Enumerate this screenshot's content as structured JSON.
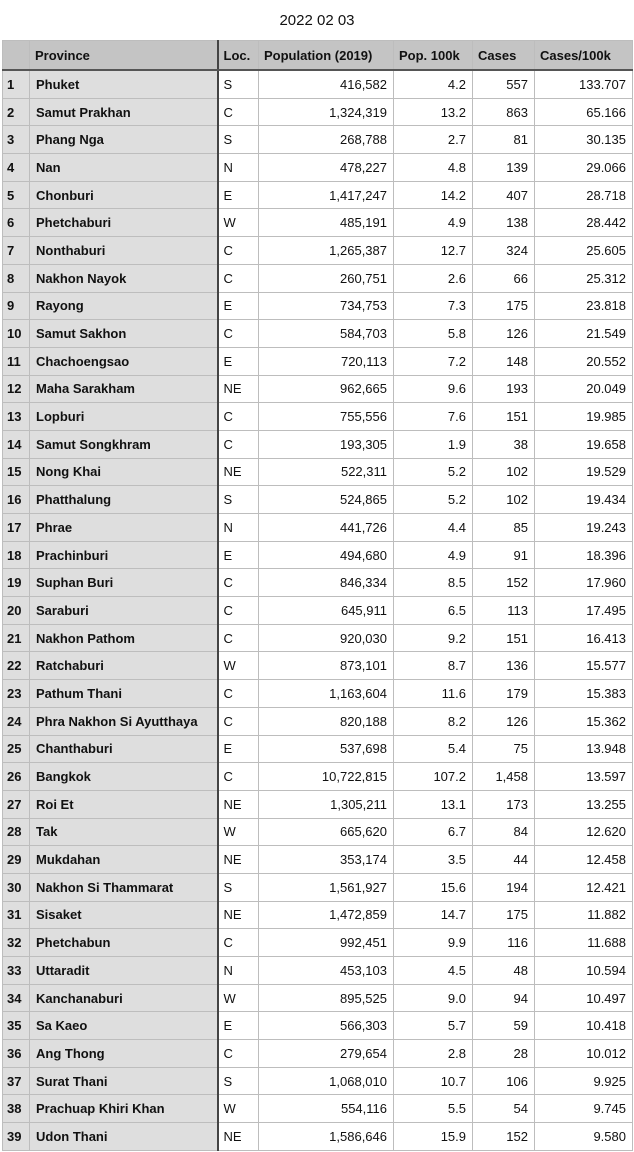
{
  "title": "2022 02 03",
  "columns": [
    "",
    "Province",
    "Loc.",
    "Population (2019)",
    "Pop. 100k",
    "Cases",
    "Cases/100k"
  ],
  "rows": [
    [
      "1",
      "Phuket",
      "S",
      "416,582",
      "4.2",
      "557",
      "133.707"
    ],
    [
      "2",
      "Samut Prakhan",
      "C",
      "1,324,319",
      "13.2",
      "863",
      "65.166"
    ],
    [
      "3",
      "Phang Nga",
      "S",
      "268,788",
      "2.7",
      "81",
      "30.135"
    ],
    [
      "4",
      "Nan",
      "N",
      "478,227",
      "4.8",
      "139",
      "29.066"
    ],
    [
      "5",
      "Chonburi",
      "E",
      "1,417,247",
      "14.2",
      "407",
      "28.718"
    ],
    [
      "6",
      "Phetchaburi",
      "W",
      "485,191",
      "4.9",
      "138",
      "28.442"
    ],
    [
      "7",
      "Nonthaburi",
      "C",
      "1,265,387",
      "12.7",
      "324",
      "25.605"
    ],
    [
      "8",
      "Nakhon Nayok",
      "C",
      "260,751",
      "2.6",
      "66",
      "25.312"
    ],
    [
      "9",
      "Rayong",
      "E",
      "734,753",
      "7.3",
      "175",
      "23.818"
    ],
    [
      "10",
      "Samut Sakhon",
      "C",
      "584,703",
      "5.8",
      "126",
      "21.549"
    ],
    [
      "11",
      "Chachoengsao",
      "E",
      "720,113",
      "7.2",
      "148",
      "20.552"
    ],
    [
      "12",
      "Maha Sarakham",
      "NE",
      "962,665",
      "9.6",
      "193",
      "20.049"
    ],
    [
      "13",
      "Lopburi",
      "C",
      "755,556",
      "7.6",
      "151",
      "19.985"
    ],
    [
      "14",
      "Samut Songkhram",
      "C",
      "193,305",
      "1.9",
      "38",
      "19.658"
    ],
    [
      "15",
      "Nong Khai",
      "NE",
      "522,311",
      "5.2",
      "102",
      "19.529"
    ],
    [
      "16",
      "Phatthalung",
      "S",
      "524,865",
      "5.2",
      "102",
      "19.434"
    ],
    [
      "17",
      "Phrae",
      "N",
      "441,726",
      "4.4",
      "85",
      "19.243"
    ],
    [
      "18",
      "Prachinburi",
      "E",
      "494,680",
      "4.9",
      "91",
      "18.396"
    ],
    [
      "19",
      "Suphan Buri",
      "C",
      "846,334",
      "8.5",
      "152",
      "17.960"
    ],
    [
      "20",
      "Saraburi",
      "C",
      "645,911",
      "6.5",
      "113",
      "17.495"
    ],
    [
      "21",
      "Nakhon Pathom",
      "C",
      "920,030",
      "9.2",
      "151",
      "16.413"
    ],
    [
      "22",
      "Ratchaburi",
      "W",
      "873,101",
      "8.7",
      "136",
      "15.577"
    ],
    [
      "23",
      "Pathum Thani",
      "C",
      "1,163,604",
      "11.6",
      "179",
      "15.383"
    ],
    [
      "24",
      "Phra Nakhon Si Ayutthaya",
      "C",
      "820,188",
      "8.2",
      "126",
      "15.362"
    ],
    [
      "25",
      "Chanthaburi",
      "E",
      "537,698",
      "5.4",
      "75",
      "13.948"
    ],
    [
      "26",
      "Bangkok",
      "C",
      "10,722,815",
      "107.2",
      "1,458",
      "13.597"
    ],
    [
      "27",
      "Roi Et",
      "NE",
      "1,305,211",
      "13.1",
      "173",
      "13.255"
    ],
    [
      "28",
      "Tak",
      "W",
      "665,620",
      "6.7",
      "84",
      "12.620"
    ],
    [
      "29",
      "Mukdahan",
      "NE",
      "353,174",
      "3.5",
      "44",
      "12.458"
    ],
    [
      "30",
      "Nakhon Si Thammarat",
      "S",
      "1,561,927",
      "15.6",
      "194",
      "12.421"
    ],
    [
      "31",
      "Sisaket",
      "NE",
      "1,472,859",
      "14.7",
      "175",
      "11.882"
    ],
    [
      "32",
      "Phetchabun",
      "C",
      "992,451",
      "9.9",
      "116",
      "11.688"
    ],
    [
      "33",
      "Uttaradit",
      "N",
      "453,103",
      "4.5",
      "48",
      "10.594"
    ],
    [
      "34",
      "Kanchanaburi",
      "W",
      "895,525",
      "9.0",
      "94",
      "10.497"
    ],
    [
      "35",
      "Sa Kaeo",
      "E",
      "566,303",
      "5.7",
      "59",
      "10.418"
    ],
    [
      "36",
      "Ang Thong",
      "C",
      "279,654",
      "2.8",
      "28",
      "10.012"
    ],
    [
      "37",
      "Surat Thani",
      "S",
      "1,068,010",
      "10.7",
      "106",
      "9.925"
    ],
    [
      "38",
      "Prachuap Khiri Khan",
      "W",
      "554,116",
      "5.5",
      "54",
      "9.745"
    ],
    [
      "39",
      "Udon Thani",
      "NE",
      "1,586,646",
      "15.9",
      "152",
      "9.580"
    ]
  ]
}
